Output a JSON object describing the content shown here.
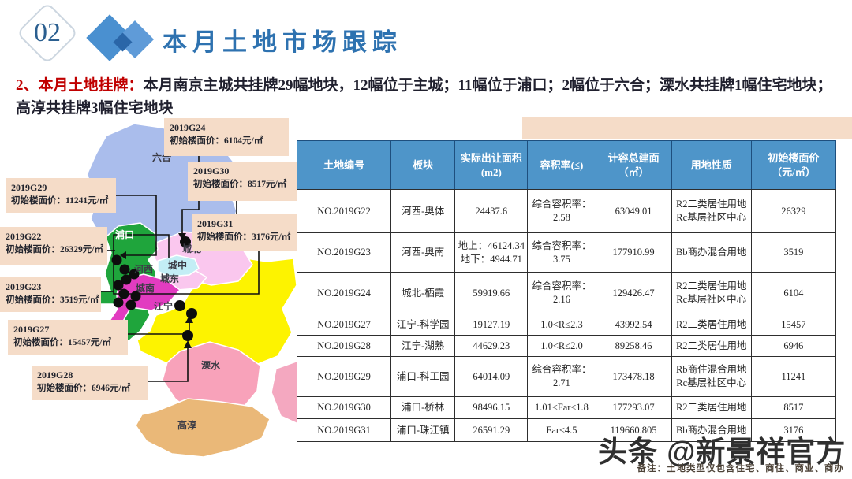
{
  "slide": {
    "section_number": "02",
    "title": "本月土地市场跟踪",
    "intro_label": "2、本月土地挂牌：",
    "intro_text": "本月南京主城共挂牌29幅地块，12幅位于主城；11幅位于浦口；2幅位于六合；溧水共挂牌1幅住宅地块；高淳共挂牌3幅住宅地块",
    "watermark": "头条 @新景祥官方",
    "note": "备注：土地类型仅包含住宅、商住、商业、商办"
  },
  "colors": {
    "title_blue": "#2e72b0",
    "accent_red": "#c00000",
    "table_header_blue": "#4e95c9",
    "callout_peach": "#f5dcc8"
  },
  "map": {
    "region_labels": {
      "luhe": "六合",
      "pukou": "浦口",
      "chengbei": "城北",
      "chengzhong": "城中",
      "chengdong": "城东",
      "hexi": "河西",
      "chengnan": "城南",
      "jiangning": "江宁",
      "lishui": "溧水",
      "gaochun": "高淳"
    },
    "region_colors": {
      "luhe": "#aabdec",
      "pukou": "#1fa53c",
      "chengbei": "#fac7ee",
      "chengzhong": "#c3eef5",
      "chengdong": "#fac7ee",
      "chengnan": "#e23cc0",
      "jiangning": "#fdf300",
      "lishui": "#f8a2ba",
      "gaochun": "#eab878",
      "corner": "#f4a8c0"
    },
    "callouts": [
      {
        "id": "2019G24",
        "price": "初始楼面价：6104元/㎡"
      },
      {
        "id": "2019G30",
        "price": "初始楼面价：8517元/㎡"
      },
      {
        "id": "2019G31",
        "price": "初始楼面价：3176元/㎡"
      },
      {
        "id": "2019G29",
        "price": "初始楼面价：11241元/㎡"
      },
      {
        "id": "2019G22",
        "price": "初始楼面价：26329元/㎡"
      },
      {
        "id": "2019G23",
        "price": "初始楼面价：3519元/㎡"
      },
      {
        "id": "2019G27",
        "price": "初始楼面价：15457元/㎡"
      },
      {
        "id": "2019G28",
        "price": "初始楼面价：6946元/㎡"
      }
    ]
  },
  "table": {
    "headers": [
      "土地编号",
      "板块",
      "实际出让面积\n(m2)",
      "容积率(≤)",
      "计容总建面\n（㎡）",
      "用地性质",
      "初始楼面价\n（元/㎡）"
    ],
    "rows": [
      [
        "NO.2019G22",
        "河西-奥体",
        "24437.6",
        "综合容积率：\n2.58",
        "63049.01",
        "R2二类居住用地\nRc基层社区中心",
        "26329"
      ],
      [
        "NO.2019G23",
        "河西-奥南",
        "地上：46124.34\n地下：4944.71",
        "综合容积率：\n3.75",
        "177910.99",
        "Bb商办混合用地",
        "3519"
      ],
      [
        "NO.2019G24",
        "城北-栖霞",
        "59919.66",
        "综合容积率：\n2.16",
        "129426.47",
        "R2二类居住用地\nRc基层社区中心",
        "6104"
      ],
      [
        "NO.2019G27",
        "江宁-科学园",
        "19127.19",
        "1.0<R≤2.3",
        "43992.54",
        "R2二类居住用地",
        "15457"
      ],
      [
        "NO.2019G28",
        "江宁-湖熟",
        "44629.23",
        "1.0<R≤2.0",
        "89258.46",
        "R2二类居住用地",
        "6946"
      ],
      [
        "NO.2019G29",
        "浦口-科工园",
        "64014.09",
        "综合容积率：\n2.71",
        "173478.18",
        "Rb商住混合用地\nRc基层社区中心",
        "11241"
      ],
      [
        "NO.2019G30",
        "浦口-桥林",
        "98496.15",
        "1.01≤Far≤1.8",
        "177293.07",
        "R2二类居住用地",
        "8517"
      ],
      [
        "NO.2019G31",
        "浦口-珠江镇",
        "26591.29",
        "Far≤4.5",
        "119660.805",
        "Bb商办混合用地",
        "3176"
      ]
    ]
  }
}
